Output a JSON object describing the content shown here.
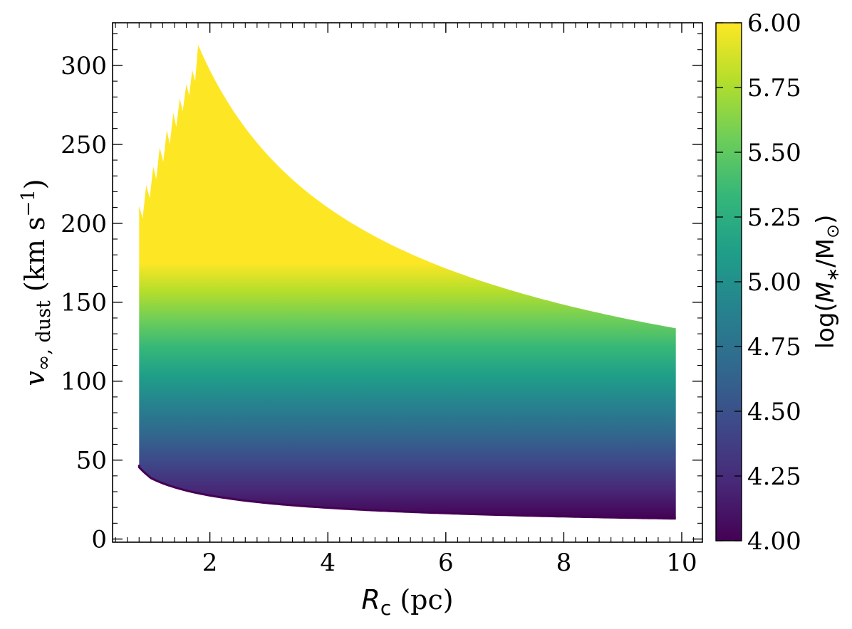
{
  "chart_data": {
    "type": "heatmap",
    "description_kind": "filled region colored by log stellar mass",
    "xlabel": {
      "main": "R",
      "sub": "c",
      "unit": " (pc)"
    },
    "ylabel": {
      "main": "v",
      "sub": "∞, dust",
      "unit_pre": " (km s",
      "sup": "−1",
      "unit_post": ")"
    },
    "xlim": [
      0.35,
      10.35
    ],
    "ylim": [
      -2,
      327
    ],
    "x_ticks": [
      2,
      4,
      6,
      8,
      10
    ],
    "x_tick_labels": [
      "2",
      "4",
      "6",
      "8",
      "10"
    ],
    "y_ticks": [
      0,
      50,
      100,
      150,
      200,
      250,
      300
    ],
    "y_tick_labels": [
      "0",
      "50",
      "100",
      "150",
      "200",
      "250",
      "300"
    ],
    "region": {
      "x_start": 0.8,
      "x_end": 9.9,
      "upper_boundary": [
        [
          0.8,
          210
        ],
        [
          1.8,
          313
        ],
        [
          2.5,
          262
        ],
        [
          3.0,
          237
        ],
        [
          4.0,
          204
        ],
        [
          5.0,
          182
        ],
        [
          6.0,
          166
        ],
        [
          7.0,
          155
        ],
        [
          8.0,
          146
        ],
        [
          9.0,
          139
        ],
        [
          9.9,
          134
        ]
      ],
      "lower_boundary": [
        [
          0.8,
          47
        ],
        [
          1.0,
          42
        ],
        [
          1.5,
          35
        ],
        [
          2.0,
          30
        ],
        [
          3.0,
          25
        ],
        [
          4.0,
          21
        ],
        [
          5.0,
          19
        ],
        [
          6.0,
          17
        ],
        [
          7.0,
          16
        ],
        [
          8.0,
          15
        ],
        [
          9.0,
          14
        ],
        [
          9.9,
          13
        ]
      ],
      "sawtooth_peaks": [
        [
          0.8,
          211
        ],
        [
          0.92,
          224
        ],
        [
          1.04,
          236
        ],
        [
          1.15,
          248
        ],
        [
          1.27,
          259
        ],
        [
          1.38,
          270
        ],
        [
          1.49,
          279
        ],
        [
          1.6,
          288
        ],
        [
          1.7,
          297
        ],
        [
          1.8,
          313
        ]
      ],
      "sawtooth_troughs": [
        [
          0.86,
          203
        ],
        [
          0.98,
          216
        ],
        [
          1.09,
          228
        ],
        [
          1.21,
          239
        ],
        [
          1.32,
          250
        ],
        [
          1.43,
          261
        ],
        [
          1.54,
          271
        ],
        [
          1.65,
          281
        ],
        [
          1.75,
          290
        ]
      ]
    },
    "colorbar": {
      "label": "log(M_*/M_⊙)",
      "label_parts": {
        "pre": "log(",
        "main": "M",
        "sub": "∗",
        "mid": "/M",
        "sub2": "⊙",
        "post": ")"
      },
      "range": [
        4.0,
        6.0
      ],
      "ticks": [
        4.0,
        4.25,
        4.5,
        4.75,
        5.0,
        5.25,
        5.5,
        5.75,
        6.0
      ],
      "tick_labels": [
        "4.00",
        "4.25",
        "4.50",
        "4.75",
        "5.00",
        "5.25",
        "5.50",
        "5.75",
        "6.00"
      ],
      "colormap": "viridis",
      "colormap_stops": [
        "#440154",
        "#482878",
        "#3e4989",
        "#31688e",
        "#26828e",
        "#1f9e89",
        "#35b779",
        "#6ece58",
        "#b5de2b",
        "#fde725"
      ]
    },
    "grid": false,
    "legend": "none"
  }
}
